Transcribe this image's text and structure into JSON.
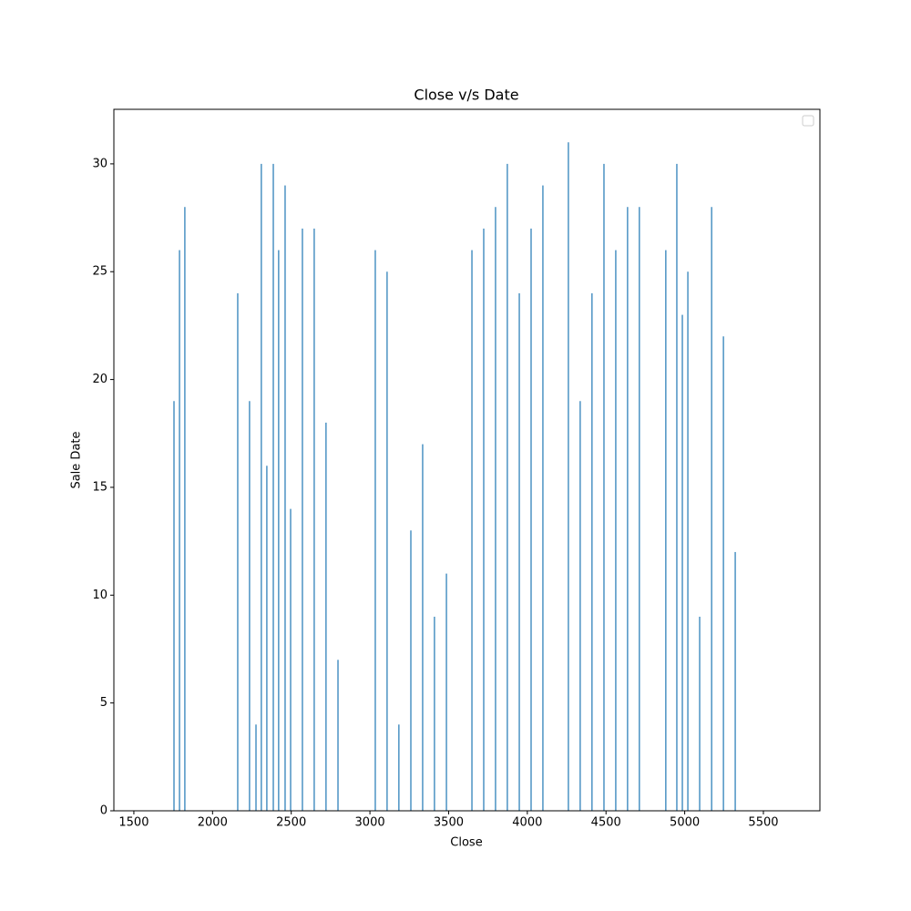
{
  "chart_data": {
    "type": "bar",
    "title": "Close v/s Date",
    "x_label": "Close",
    "y_label": "Sale Date",
    "color": "#1f77b4",
    "x": [
      1755,
      1790,
      1824,
      2160,
      2235,
      2276,
      2310,
      2345,
      2386,
      2420,
      2461,
      2496,
      2571,
      2646,
      2721,
      2797,
      3034,
      3109,
      3184,
      3260,
      3335,
      3410,
      3486,
      3648,
      3723,
      3798,
      3873,
      3949,
      4024,
      4099,
      4261,
      4336,
      4411,
      4487,
      4562,
      4637,
      4712,
      4880,
      4950,
      4985,
      5020,
      5095,
      5171,
      5246,
      5321
    ],
    "values": [
      19,
      26,
      28,
      24,
      19,
      4,
      30,
      16,
      30,
      26,
      29,
      14,
      27,
      27,
      18,
      7,
      26,
      25,
      4,
      13,
      17,
      9,
      11,
      26,
      27,
      28,
      30,
      24,
      27,
      29,
      31,
      19,
      24,
      30,
      26,
      28,
      28,
      26,
      30,
      23,
      25,
      9,
      28,
      22,
      12
    ],
    "xlim": [
      1373,
      5859
    ],
    "ylim": [
      0,
      32.53
    ],
    "xticks": [
      1500,
      2000,
      2500,
      3000,
      3500,
      4000,
      4500,
      5000,
      5500
    ],
    "yticks": [
      0,
      5,
      10,
      15,
      20,
      25,
      30
    ]
  }
}
